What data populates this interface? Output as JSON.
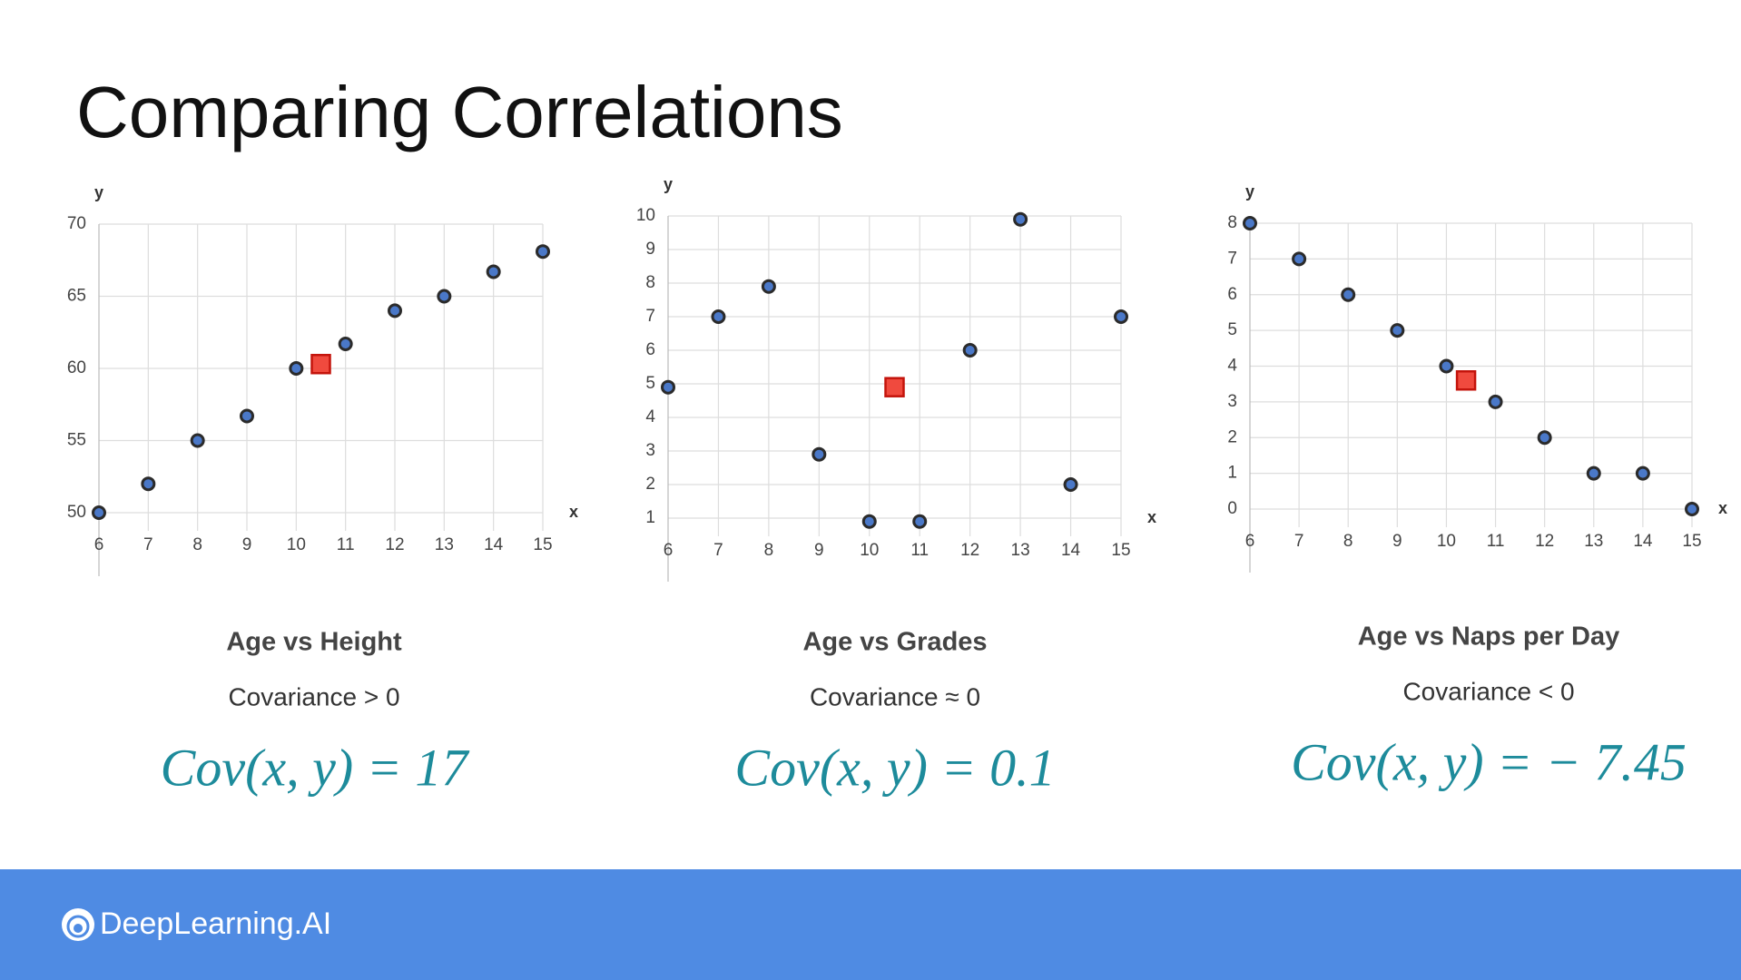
{
  "slide_title": "Comparing Correlations",
  "brand": "DeepLearning.AI",
  "chart_data": [
    {
      "type": "scatter",
      "title": "Age vs Height",
      "subtitle": "Covariance > 0",
      "annotation": "Cov(x, y) = 17",
      "x_label": "x",
      "y_label": "y",
      "xlim": [
        6,
        15
      ],
      "xticks": [
        6,
        7,
        8,
        9,
        10,
        11,
        12,
        13,
        14,
        15
      ],
      "ylim": [
        50,
        70
      ],
      "yticks": [
        50,
        55,
        60,
        65,
        70
      ],
      "grid": true,
      "series": [
        {
          "color": "#4a78c8",
          "marker": "circle",
          "x": [
            6,
            7,
            8,
            9,
            10,
            11,
            12,
            13,
            14,
            15
          ],
          "values": [
            50,
            52,
            55,
            56.7,
            60,
            61.7,
            64,
            65,
            66.7,
            68.1
          ]
        },
        {
          "color": "#f04a3e",
          "marker": "square",
          "x": [
            10.5
          ],
          "values": [
            60.3
          ]
        }
      ]
    },
    {
      "type": "scatter",
      "title": "Age vs Grades",
      "subtitle": "Covariance ≈ 0",
      "annotation": "Cov(x, y) = 0.1",
      "x_label": "x",
      "y_label": "y",
      "xlim": [
        6,
        15
      ],
      "xticks": [
        6,
        7,
        8,
        9,
        10,
        11,
        12,
        13,
        14,
        15
      ],
      "ylim": [
        1,
        10
      ],
      "yticks": [
        1,
        2,
        3,
        4,
        5,
        6,
        7,
        8,
        9,
        10
      ],
      "grid": true,
      "series": [
        {
          "color": "#4a78c8",
          "marker": "circle",
          "x": [
            6,
            7,
            8,
            9,
            10,
            11,
            12,
            13,
            14,
            15
          ],
          "values": [
            4.9,
            7,
            7.9,
            2.9,
            0.9,
            0.9,
            6,
            9.9,
            2,
            7
          ]
        },
        {
          "color": "#f04a3e",
          "marker": "square",
          "x": [
            10.5
          ],
          "values": [
            4.9
          ]
        }
      ]
    },
    {
      "type": "scatter",
      "title": "Age vs Naps per Day",
      "subtitle": "Covariance < 0",
      "annotation": "Cov(x, y) = − 7.45",
      "x_label": "x",
      "y_label": "y",
      "xlim": [
        6,
        15
      ],
      "xticks": [
        6,
        7,
        8,
        9,
        10,
        11,
        12,
        13,
        14,
        15
      ],
      "ylim": [
        0,
        8
      ],
      "yticks": [
        0,
        1,
        2,
        3,
        4,
        5,
        6,
        7,
        8
      ],
      "grid": true,
      "series": [
        {
          "color": "#4a78c8",
          "marker": "circle",
          "x": [
            6,
            7,
            8,
            9,
            10,
            11,
            12,
            13,
            14,
            15
          ],
          "values": [
            8,
            7,
            6,
            5,
            4,
            3,
            2,
            1,
            1,
            0
          ]
        },
        {
          "color": "#f04a3e",
          "marker": "square",
          "x": [
            10.4
          ],
          "values": [
            3.6
          ]
        }
      ]
    }
  ]
}
